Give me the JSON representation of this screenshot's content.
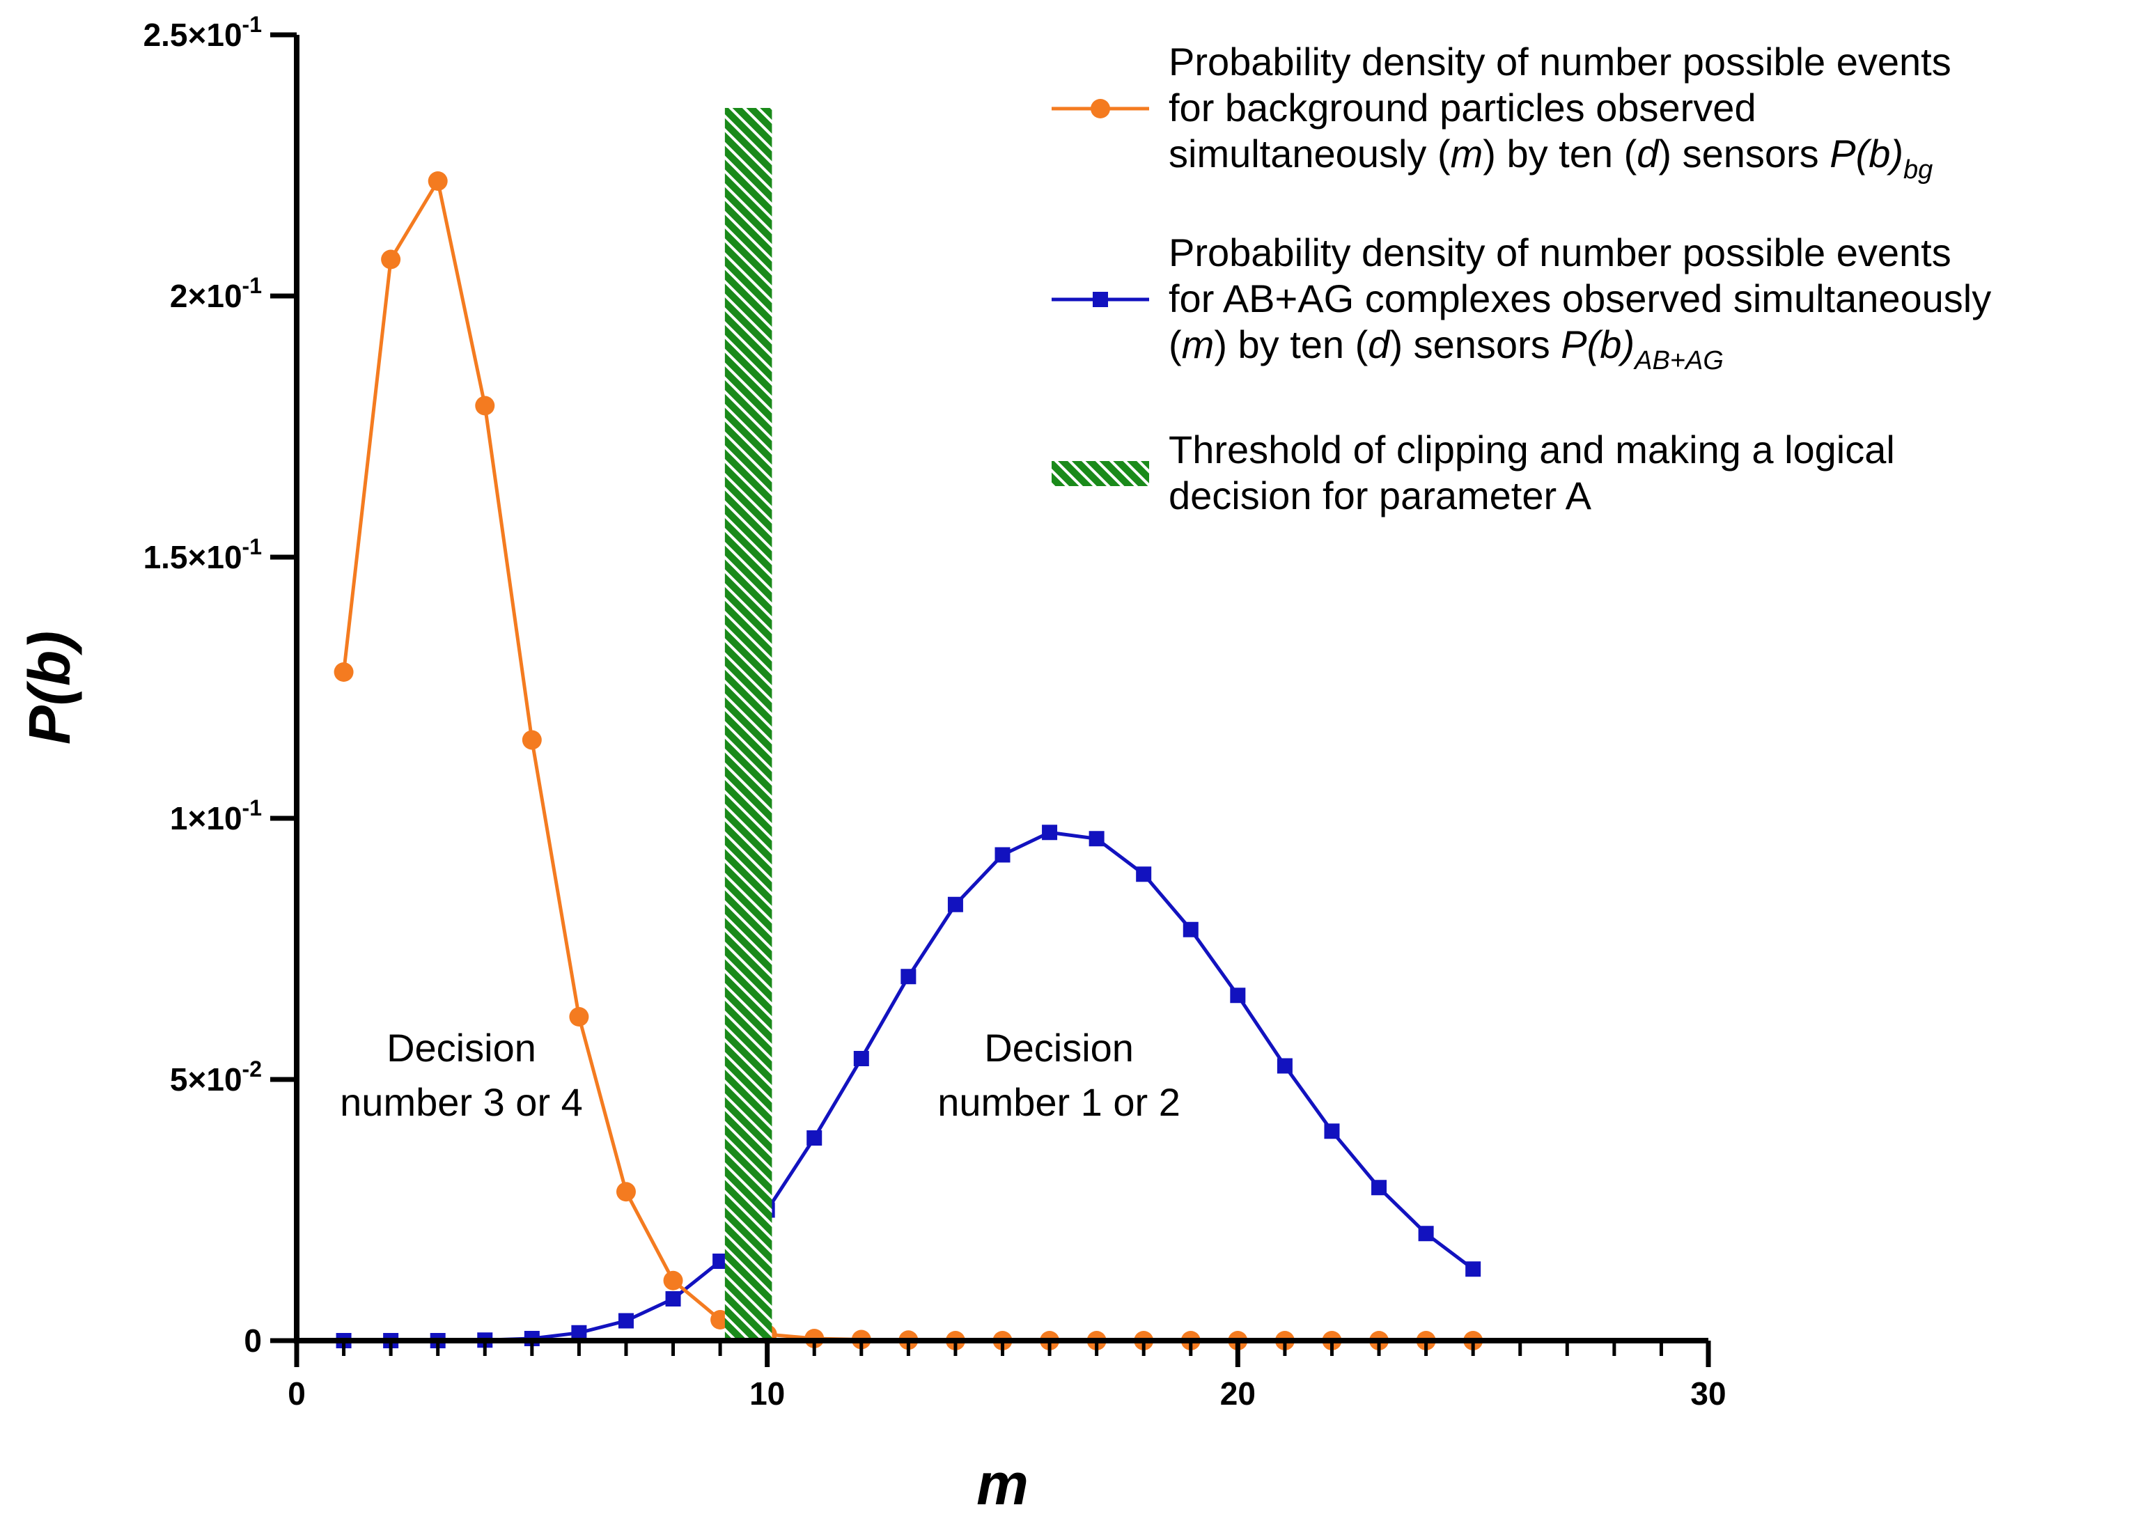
{
  "chart_data": {
    "type": "line",
    "xlabel": "m",
    "ylabel": "P(b)",
    "xlim": [
      0,
      30
    ],
    "ylim": [
      0,
      0.25
    ],
    "xticks": [
      {
        "value": 0,
        "label": "0"
      },
      {
        "value": 10,
        "label": "10"
      },
      {
        "value": 20,
        "label": "20"
      },
      {
        "value": 30,
        "label": "30"
      }
    ],
    "yticks": [
      {
        "value": 0,
        "base": "0",
        "exp": ""
      },
      {
        "value": 0.05,
        "base": "5×10",
        "exp": "-2"
      },
      {
        "value": 0.1,
        "base": "1×10",
        "exp": "-1"
      },
      {
        "value": 0.15,
        "base": "1.5×10",
        "exp": "-1"
      },
      {
        "value": 0.2,
        "base": "2×10",
        "exp": "-1"
      },
      {
        "value": 0.25,
        "base": "2.5×10",
        "exp": "-1"
      }
    ],
    "series": [
      {
        "key": "bg",
        "color": "#f47b20",
        "marker": "circle",
        "x": [
          1,
          2,
          3,
          4,
          5,
          6,
          7,
          8,
          9,
          10,
          11,
          12,
          13,
          14,
          15,
          16,
          17,
          18,
          19,
          20,
          21,
          22,
          23,
          24,
          25
        ],
        "values": [
          0.128,
          0.207,
          0.222,
          0.179,
          0.115,
          0.062,
          0.0285,
          0.0115,
          0.004,
          0.0012,
          0.0004,
          0.0002,
          0.0001,
          0,
          0,
          0,
          0,
          0,
          0,
          0,
          0,
          0,
          0,
          0,
          0
        ]
      },
      {
        "key": "abag",
        "color": "#1212bf",
        "marker": "square",
        "x": [
          1,
          2,
          3,
          4,
          5,
          6,
          7,
          8,
          9,
          10,
          11,
          12,
          13,
          14,
          15,
          16,
          17,
          18,
          19,
          20,
          21,
          22,
          23,
          24,
          25
        ],
        "values": [
          0,
          0,
          0,
          0.0001,
          0.0004,
          0.0015,
          0.0038,
          0.008,
          0.0152,
          0.025,
          0.0388,
          0.054,
          0.0697,
          0.0835,
          0.093,
          0.0973,
          0.0961,
          0.0893,
          0.0787,
          0.0661,
          0.0526,
          0.0401,
          0.0293,
          0.0205,
          0.0137
        ]
      }
    ],
    "threshold": {
      "x_start": 9.1,
      "x_end": 10.1,
      "y_top": 0.236,
      "color": "#1a8a1a"
    },
    "legend": {
      "placement": "top-right",
      "entries": [
        {
          "key": "bg",
          "lines": [
            [
              {
                "t": "Probability density of number possible events"
              }
            ],
            [
              {
                "t": "for background particles observed"
              }
            ],
            [
              {
                "t": "simultaneously ("
              },
              {
                "t": "m",
                "i": true
              },
              {
                "t": ") by ten ("
              },
              {
                "t": "d",
                "i": true
              },
              {
                "t": ") sensors "
              },
              {
                "t": "P(b)",
                "i": true
              },
              {
                "t": "bg",
                "i": true,
                "sub": true
              }
            ]
          ]
        },
        {
          "key": "abag",
          "lines": [
            [
              {
                "t": "Probability density of number possible events"
              }
            ],
            [
              {
                "t": "for AB+AG complexes observed simultaneously"
              }
            ],
            [
              {
                "t": "("
              },
              {
                "t": "m",
                "i": true
              },
              {
                "t": ") by ten ("
              },
              {
                "t": "d",
                "i": true
              },
              {
                "t": ") sensors "
              },
              {
                "t": "P(b)",
                "i": true
              },
              {
                "t": "AB+AG",
                "i": true,
                "sub": true
              }
            ]
          ]
        },
        {
          "key": "threshold",
          "lines": [
            [
              {
                "t": "Threshold of clipping and making a logical"
              }
            ],
            [
              {
                "t": "decision for parameter A"
              }
            ]
          ]
        }
      ]
    },
    "annotations": [
      {
        "lines": [
          "Decision",
          "number 3 or 4"
        ],
        "x": 3.5,
        "y": 0.0535
      },
      {
        "lines": [
          "Decision",
          "number 1 or 2"
        ],
        "x": 16.2,
        "y": 0.0535
      }
    ]
  }
}
